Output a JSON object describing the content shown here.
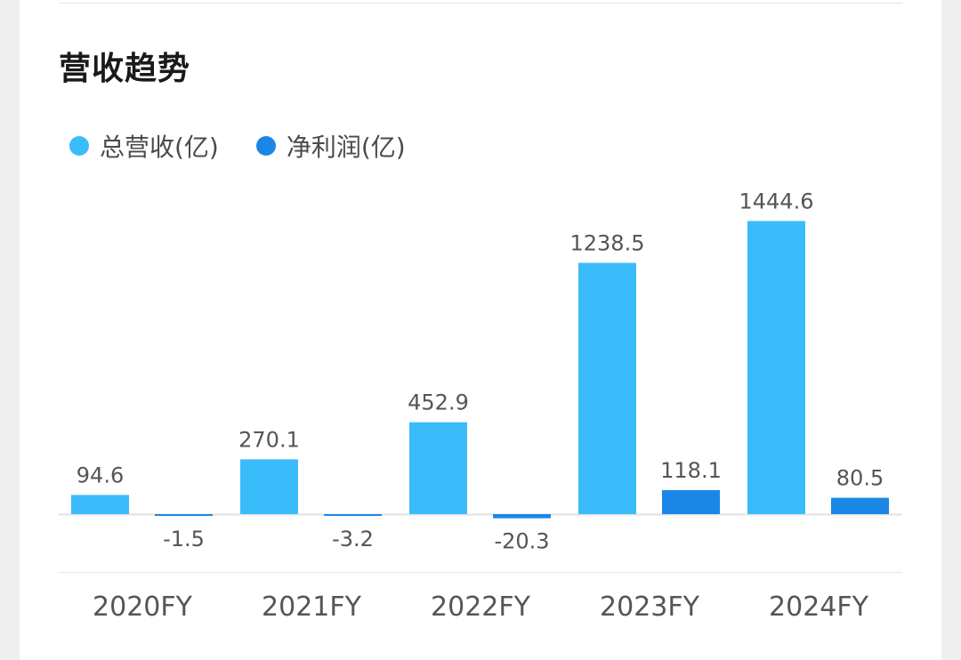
{
  "page": {
    "title": "营收趋势"
  },
  "colors": {
    "revenue": "#3bbcfa",
    "profit": "#1a87e6",
    "label_text": "#555555",
    "axis_text": "#555555",
    "baseline": "#e2e2e2"
  },
  "chart_data": {
    "type": "bar",
    "title": "",
    "categories": [
      "2020FY",
      "2021FY",
      "2022FY",
      "2023FY",
      "2024FY"
    ],
    "series": [
      {
        "name": "总营收(亿)",
        "values": [
          94.6,
          270.1,
          452.9,
          1238.5,
          1444.6
        ],
        "labels": [
          "94.6",
          "270.1",
          "452.9",
          "1238.5",
          "1444.6"
        ]
      },
      {
        "name": "净利润(亿)",
        "values": [
          -1.5,
          -3.2,
          -20.3,
          118.1,
          80.5
        ],
        "labels": [
          "-1.5",
          "-3.2",
          "-20.3",
          "118.1",
          "80.5"
        ]
      }
    ],
    "xlabel": "",
    "ylabel": "",
    "grid": false,
    "legend": "top-left",
    "data_labels": true
  }
}
